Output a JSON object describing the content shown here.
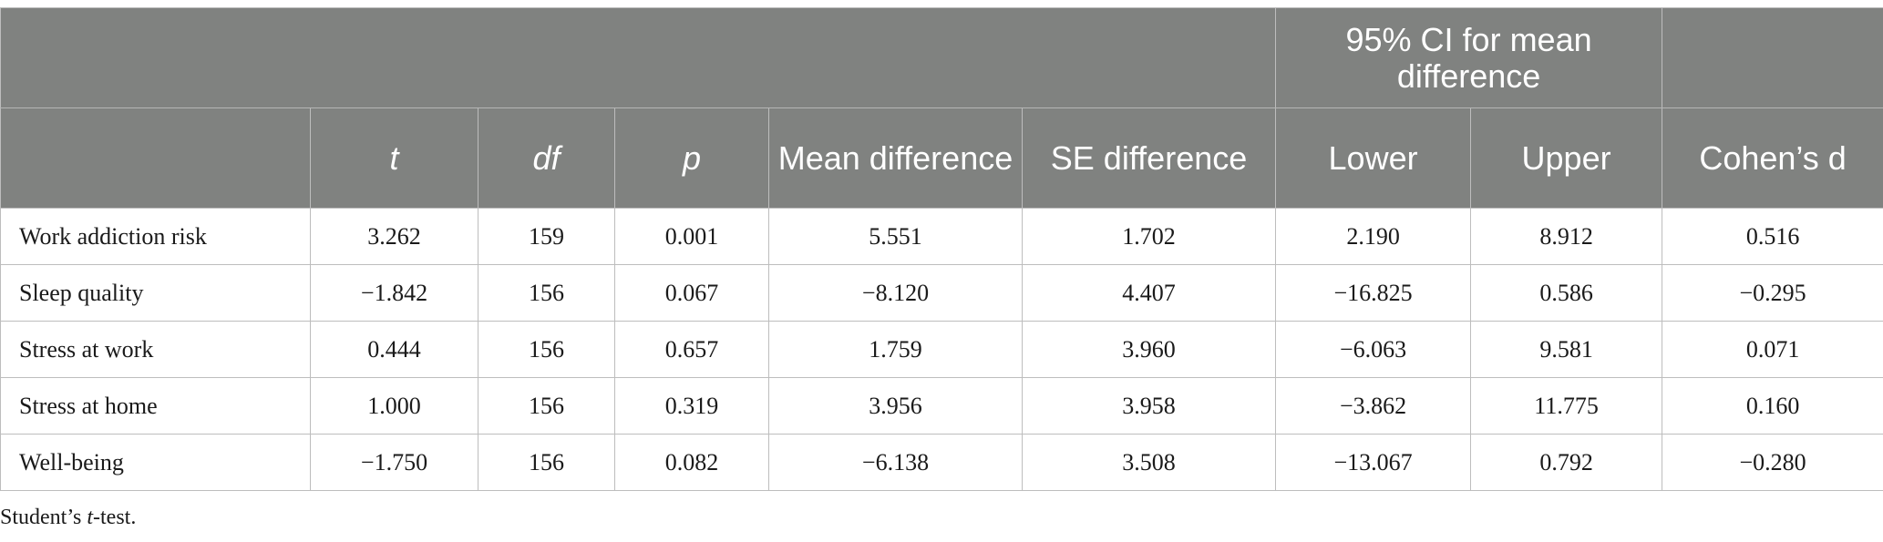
{
  "header": {
    "group_label": "95% CI for mean difference",
    "columns": {
      "t": "t",
      "df": "df",
      "p": "p",
      "mean_difference": "Mean difference",
      "se_difference": "SE difference",
      "lower": "Lower",
      "upper": "Upper",
      "cohens_d": "Cohen’s d"
    }
  },
  "rows": [
    {
      "label": "Work addiction risk",
      "t": "3.262",
      "df": "159",
      "p": "0.001",
      "mean_difference": "5.551",
      "se_difference": "1.702",
      "lower": "2.190",
      "upper": "8.912",
      "cohens_d": "0.516"
    },
    {
      "label": "Sleep quality",
      "t": "−1.842",
      "df": "156",
      "p": "0.067",
      "mean_difference": "−8.120",
      "se_difference": "4.407",
      "lower": "−16.825",
      "upper": "0.586",
      "cohens_d": "−0.295"
    },
    {
      "label": "Stress at work",
      "t": "0.444",
      "df": "156",
      "p": "0.657",
      "mean_difference": "1.759",
      "se_difference": "3.960",
      "lower": "−6.063",
      "upper": "9.581",
      "cohens_d": "0.071"
    },
    {
      "label": "Stress at home",
      "t": "1.000",
      "df": "156",
      "p": "0.319",
      "mean_difference": "3.956",
      "se_difference": "3.958",
      "lower": "−3.862",
      "upper": "11.775",
      "cohens_d": "0.160"
    },
    {
      "label": "Well-being",
      "t": "−1.750",
      "df": "156",
      "p": "0.082",
      "mean_difference": "−6.138",
      "se_difference": "3.508",
      "lower": "−13.067",
      "upper": "0.792",
      "cohens_d": "−0.280"
    }
  ],
  "footnote": {
    "prefix": "Student’s ",
    "italic": "t",
    "suffix": "-test."
  },
  "colors": {
    "header_background": "#808280",
    "header_text": "#ffffff",
    "border": "#bdbdbd"
  }
}
